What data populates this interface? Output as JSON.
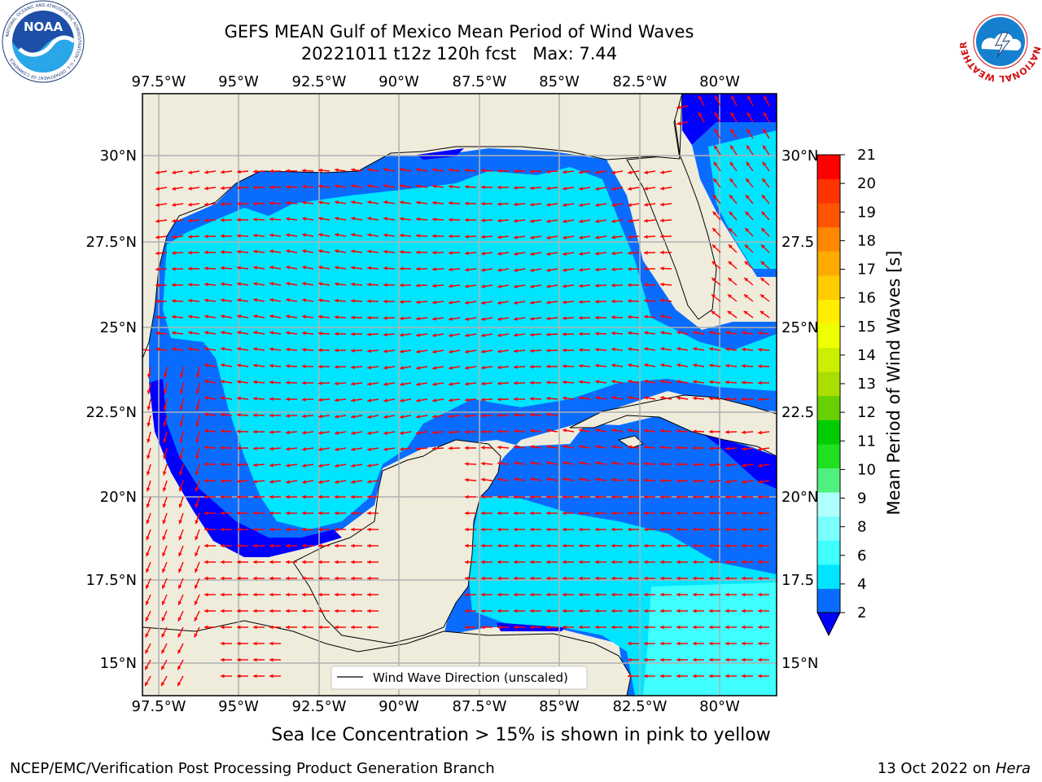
{
  "title": {
    "line1": "GEFS MEAN Gulf of Mexico Mean Period of Wind Waves",
    "line2": "20221011 t12z 120h fcst   Max: 7.44"
  },
  "map": {
    "lon_labels": [
      "97.5°W",
      "95°W",
      "92.5°W",
      "90°W",
      "87.5°W",
      "85°W",
      "82.5°W",
      "80°W"
    ],
    "lat_labels_left": [
      "30°N",
      "27.5°N",
      "25°N",
      "22.5°N",
      "20°N",
      "17.5°N",
      "15°N"
    ],
    "lat_labels_right": [
      "30°N",
      "27.5",
      "25°N",
      "22.5",
      "20°N",
      "17.5",
      "15°N"
    ],
    "legend_label": "Wind Wave Direction (unscaled)",
    "colors": {
      "land": "#efecdc",
      "arrow": "#ff0000",
      "grid": "#b0b0b0"
    }
  },
  "colorbar": {
    "label": "Mean Period of Wind Waves [s]",
    "ticks": [
      "2",
      "4",
      "6",
      "8",
      "9",
      "10",
      "11",
      "12",
      "13",
      "14",
      "15",
      "16",
      "17",
      "18",
      "19",
      "20",
      "21"
    ],
    "colors": [
      "#0a6cff",
      "#00e5ff",
      "#40ffff",
      "#7affff",
      "#b0ffff",
      "#50f080",
      "#20e020",
      "#00cc00",
      "#66d000",
      "#aadd00",
      "#ccee00",
      "#eeff00",
      "#ffee00",
      "#ffcc00",
      "#ffaa00",
      "#ff8800",
      "#ff5500",
      "#ff3300",
      "#ff0000"
    ],
    "under_color": "#0000ff"
  },
  "subnote": "Sea Ice Concentration > 15% is shown in pink to yellow",
  "footer": {
    "left": "NCEP/EMC/Verification Post Processing Product Generation Branch",
    "right_prefix": "13 Oct 2022 on ",
    "right_host": "Hera"
  },
  "logos": {
    "noaa_text": "NOAA",
    "noaa_ring_text": "NATIONAL OCEANIC AND ATMOSPHERIC ADMINISTRATION • U.S. DEPARTMENT OF COMMERCE",
    "nws_ring_text": "NATIONAL WEATHER SERVICE"
  }
}
